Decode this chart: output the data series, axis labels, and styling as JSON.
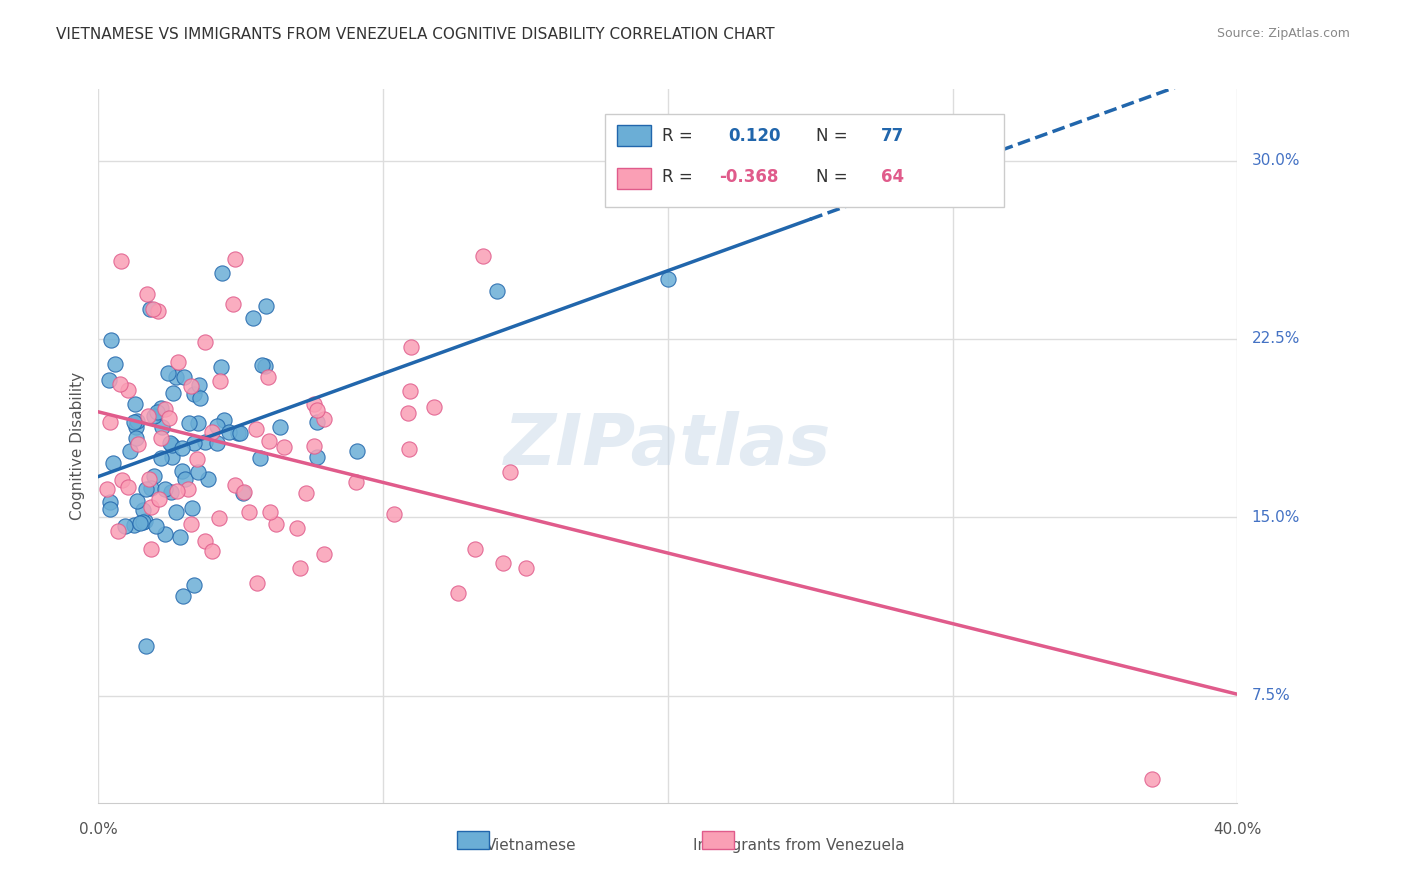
{
  "title": "VIETNAMESE VS IMMIGRANTS FROM VENEZUELA COGNITIVE DISABILITY CORRELATION CHART",
  "source": "Source: ZipAtlas.com",
  "ylabel": "Cognitive Disability",
  "yticks": [
    "7.5%",
    "15.0%",
    "22.5%",
    "30.0%"
  ],
  "ytick_vals": [
    0.075,
    0.15,
    0.225,
    0.3
  ],
  "xlim": [
    0.0,
    0.4
  ],
  "ylim": [
    0.03,
    0.33
  ],
  "r_vietnamese": 0.12,
  "n_vietnamese": 77,
  "r_venezuela": -0.368,
  "n_venezuela": 64,
  "color_vietnamese": "#6baed6",
  "color_venezuela": "#fa9fb5",
  "color_line_vietnamese": "#2166ac",
  "color_line_venezuela": "#e05b8b",
  "watermark": "ZIPatlas",
  "background_color": "#ffffff",
  "grid_color": "#dddddd"
}
